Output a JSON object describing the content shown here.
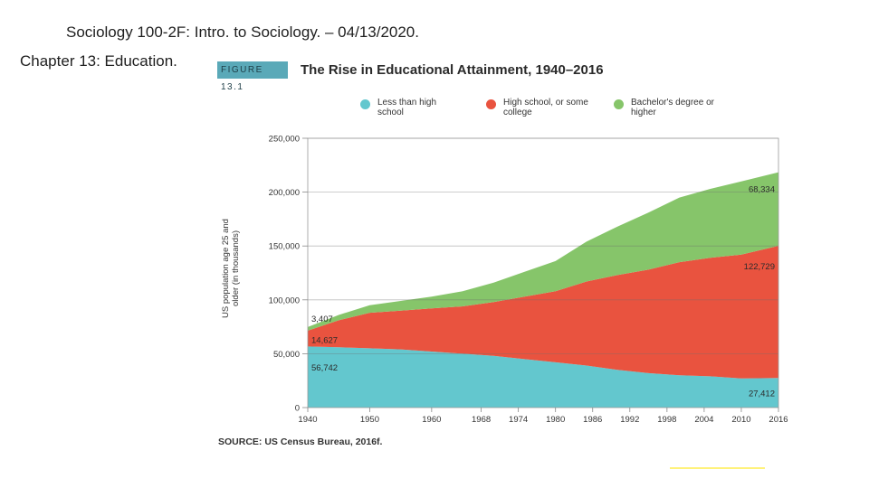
{
  "slide": {
    "header": "Sociology 100-2F: Intro. to Sociology. – 04/13/2020.",
    "subheader": "Chapter 13: Education."
  },
  "figure": {
    "badge": "FIGURE 13.1",
    "source": "SOURCE: US Census Bureau, 2016f."
  },
  "colors": {
    "less_than_hs": "#63c7ce",
    "hs_some_college": "#e9533f",
    "bachelors": "#86c56a",
    "badge": "#5aa9b8"
  },
  "chart_data": {
    "type": "area",
    "stacked": true,
    "title": "The Rise in Educational Attainment, 1940–2016",
    "xlabel": "",
    "ylabel": "US population age 25 and older (in thousands)",
    "xlim": [
      1940,
      2016
    ],
    "ylim": [
      0,
      250000
    ],
    "x_ticks": [
      1940,
      1950,
      1960,
      1968,
      1974,
      1980,
      1986,
      1992,
      1998,
      2004,
      2010,
      2016
    ],
    "y_ticks": [
      0,
      50000,
      100000,
      150000,
      200000,
      250000
    ],
    "y_tick_labels": [
      "0",
      "50,000",
      "100,000",
      "150,000",
      "200,000",
      "250,000"
    ],
    "grid": true,
    "legend": "top",
    "x": [
      1940,
      1945,
      1950,
      1955,
      1960,
      1965,
      1970,
      1975,
      1980,
      1985,
      1990,
      1995,
      2000,
      2005,
      2010,
      2016
    ],
    "series": [
      {
        "name": "Less than high school",
        "values": [
          56742,
          56000,
          55000,
          54000,
          52000,
          50000,
          48000,
          45000,
          42000,
          39000,
          35000,
          32000,
          30000,
          29000,
          27000,
          27412
        ]
      },
      {
        "name": "High school, or some college",
        "values": [
          14627,
          25000,
          33000,
          36000,
          40000,
          44000,
          50000,
          58000,
          66000,
          78000,
          88000,
          96000,
          105000,
          110000,
          115000,
          122729
        ]
      },
      {
        "name": "Bachelor's degree or higher",
        "values": [
          3407,
          5000,
          7000,
          9000,
          11000,
          14000,
          18000,
          23000,
          28000,
          37000,
          45000,
          53000,
          60000,
          64000,
          68000,
          68334
        ]
      }
    ],
    "annotations": [
      {
        "text": "3,407",
        "series": 2,
        "at": "start"
      },
      {
        "text": "14,627",
        "series": 1,
        "at": "start"
      },
      {
        "text": "56,742",
        "series": 0,
        "at": "start"
      },
      {
        "text": "68,334",
        "series": 2,
        "at": "end"
      },
      {
        "text": "122,729",
        "series": 1,
        "at": "end"
      },
      {
        "text": "27,412",
        "series": 0,
        "at": "end"
      }
    ],
    "legend_labels": [
      "Less than high school",
      "High school, or some college",
      "Bachelor's degree or higher"
    ]
  }
}
